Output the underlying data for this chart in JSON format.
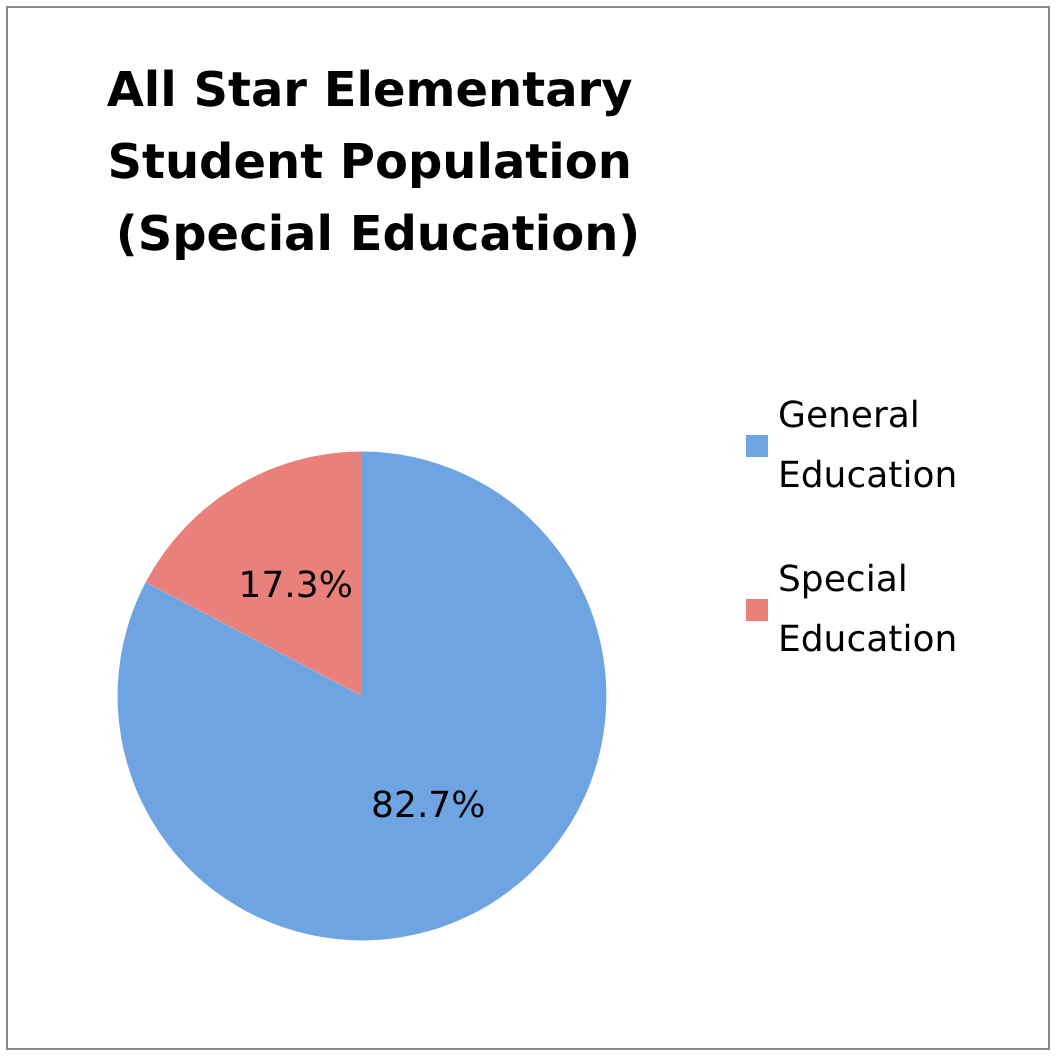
{
  "chart_data": {
    "type": "pie",
    "title": "All Star Elementary Student Population (Special Education)",
    "categories": [
      "General Education",
      "Special Education"
    ],
    "values": [
      82.7,
      17.3
    ],
    "value_labels": [
      "82.7%",
      "17.3%"
    ],
    "colors": [
      "#6ea4e2",
      "#e9807c"
    ],
    "legend": "right"
  }
}
